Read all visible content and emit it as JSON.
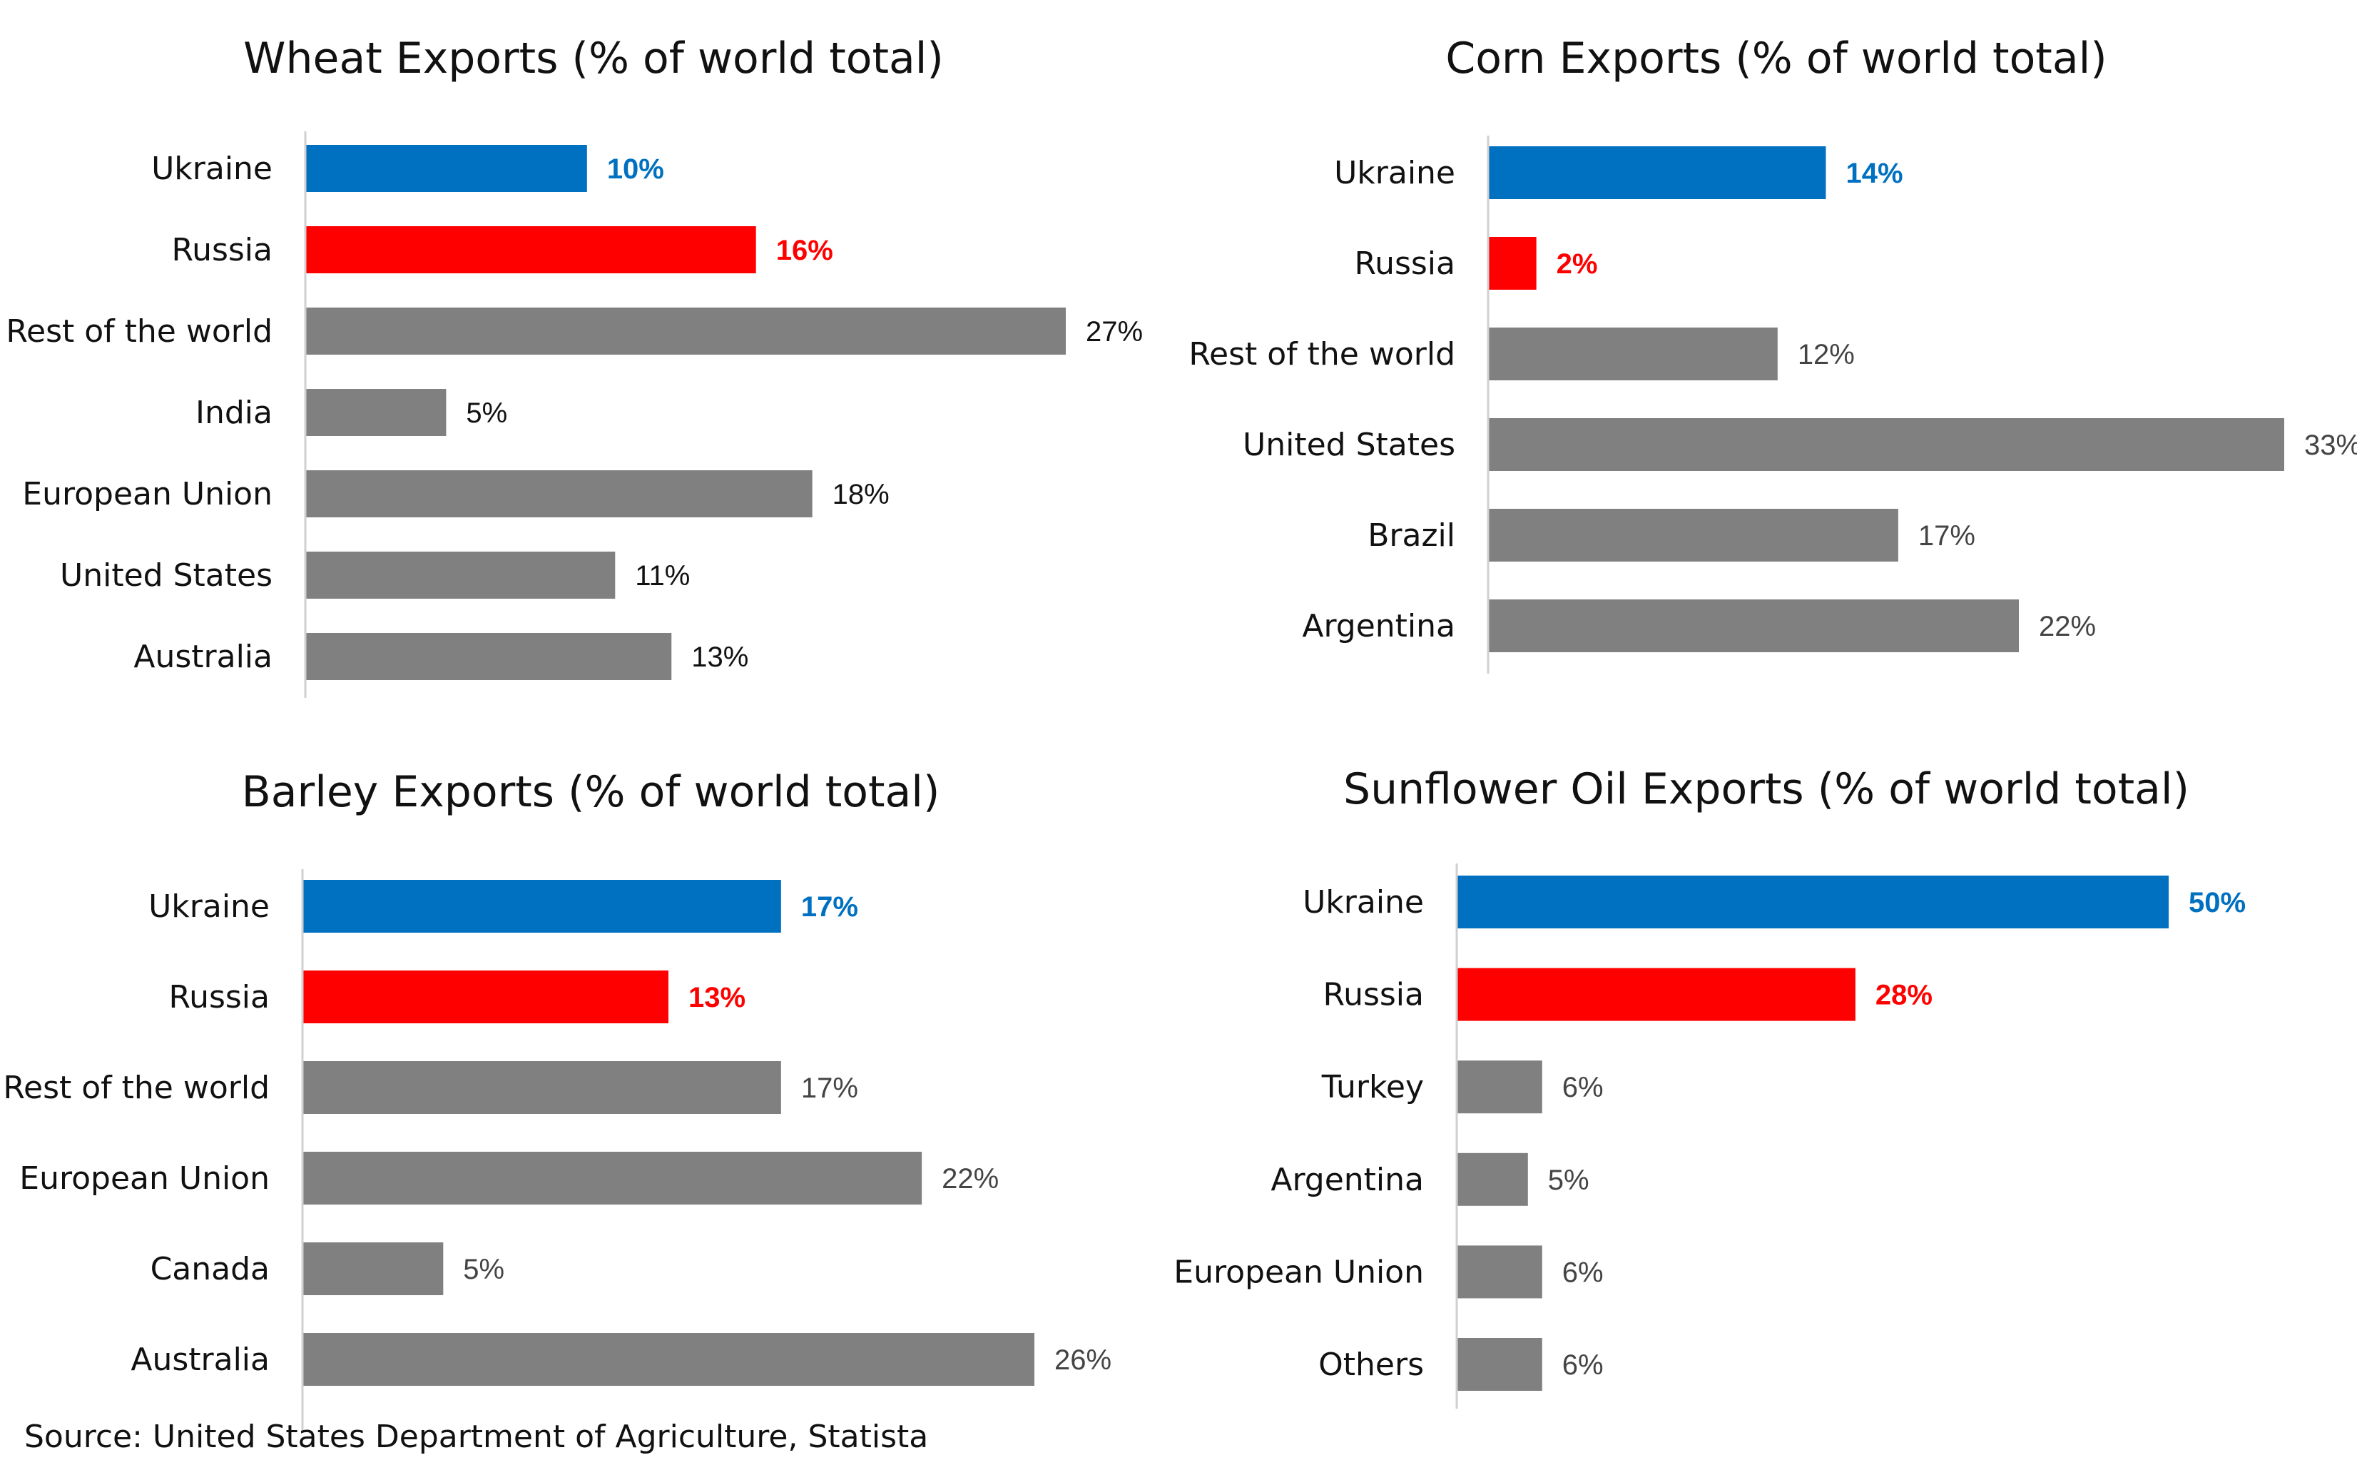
{
  "chart_data": [
    {
      "type": "bar",
      "orientation": "horizontal",
      "title": "Wheat Exports (% of world total)",
      "categories": [
        "Ukraine",
        "Russia",
        "Rest of the world",
        "India",
        "European Union",
        "United States",
        "Australia"
      ],
      "values": [
        10,
        16,
        27,
        5,
        18,
        11,
        13
      ],
      "value_labels": [
        "10%",
        "16%",
        "27%",
        "5%",
        "18%",
        "11%",
        "13%"
      ],
      "colors": [
        "#0070C0",
        "#FF0000",
        "#808080",
        "#808080",
        "#808080",
        "#808080",
        "#808080"
      ],
      "xlim": [
        0,
        27
      ]
    },
    {
      "type": "bar",
      "orientation": "horizontal",
      "title": "Corn Exports (% of world total)",
      "categories": [
        "Ukraine",
        "Russia",
        "Rest of the world",
        "United States",
        "Brazil",
        "Argentina"
      ],
      "values": [
        14,
        2,
        12,
        33,
        17,
        22
      ],
      "value_labels": [
        "14%",
        "2%",
        "12%",
        "33%",
        "17%",
        "22%"
      ],
      "colors": [
        "#0070C0",
        "#FF0000",
        "#808080",
        "#808080",
        "#808080",
        "#808080"
      ],
      "xlim": [
        0,
        33
      ]
    },
    {
      "type": "bar",
      "orientation": "horizontal",
      "title": "Barley Exports (% of world total)",
      "categories": [
        "Ukraine",
        "Russia",
        "Rest of the world",
        "European Union",
        "Canada",
        "Australia"
      ],
      "values": [
        17,
        13,
        17,
        22,
        5,
        26
      ],
      "value_labels": [
        "17%",
        "13%",
        "17%",
        "22%",
        "5%",
        "26%"
      ],
      "colors": [
        "#0070C0",
        "#FF0000",
        "#808080",
        "#808080",
        "#808080",
        "#808080"
      ],
      "xlim": [
        0,
        26
      ]
    },
    {
      "type": "bar",
      "orientation": "horizontal",
      "title": "Sunflower Oil Exports (% of world total)",
      "categories": [
        "Ukraine",
        "Russia",
        "Turkey",
        "Argentina",
        "European Union",
        "Others"
      ],
      "values": [
        50,
        28,
        6,
        5,
        6,
        6
      ],
      "value_labels": [
        "50%",
        "28%",
        "6%",
        "5%",
        "6%",
        "6%"
      ],
      "colors": [
        "#0070C0",
        "#FF0000",
        "#808080",
        "#808080",
        "#808080",
        "#808080"
      ],
      "xlim": [
        0,
        50
      ]
    }
  ],
  "source": "Source: United States Department of Agriculture, Statista"
}
